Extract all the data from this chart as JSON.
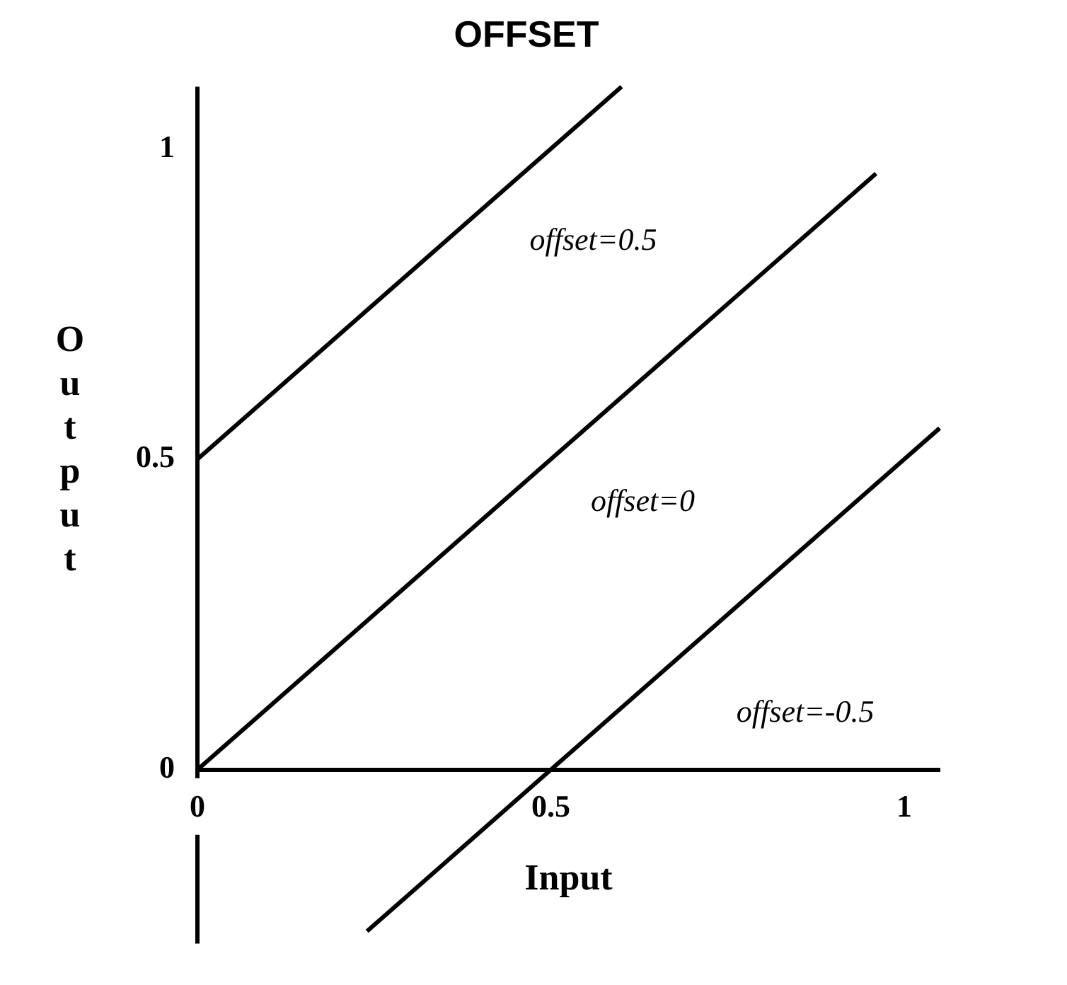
{
  "chart_data": {
    "type": "line",
    "title": "OFFSET",
    "xlabel": "Input",
    "ylabel": "Output",
    "xlim": [
      0,
      1.05
    ],
    "ylim": [
      -0.28,
      1.1
    ],
    "xticks": [
      0,
      0.5,
      1
    ],
    "yticks": [
      0,
      0.5,
      1
    ],
    "grid": false,
    "legend": false,
    "marker": "none",
    "line_style": "solid",
    "series": [
      {
        "color": "#000000",
        "x": [
          0,
          0.6
        ],
        "values": [
          0.5,
          1.1
        ]
      },
      {
        "color": "#000000",
        "x": [
          0,
          0.96
        ],
        "values": [
          0,
          0.96
        ]
      },
      {
        "color": "#000000",
        "x": [
          0.24,
          1.05
        ],
        "values": [
          -0.26,
          0.55
        ]
      }
    ],
    "annotations": [
      "offset=0.5",
      "offset=0",
      "offset=-0.5"
    ]
  }
}
